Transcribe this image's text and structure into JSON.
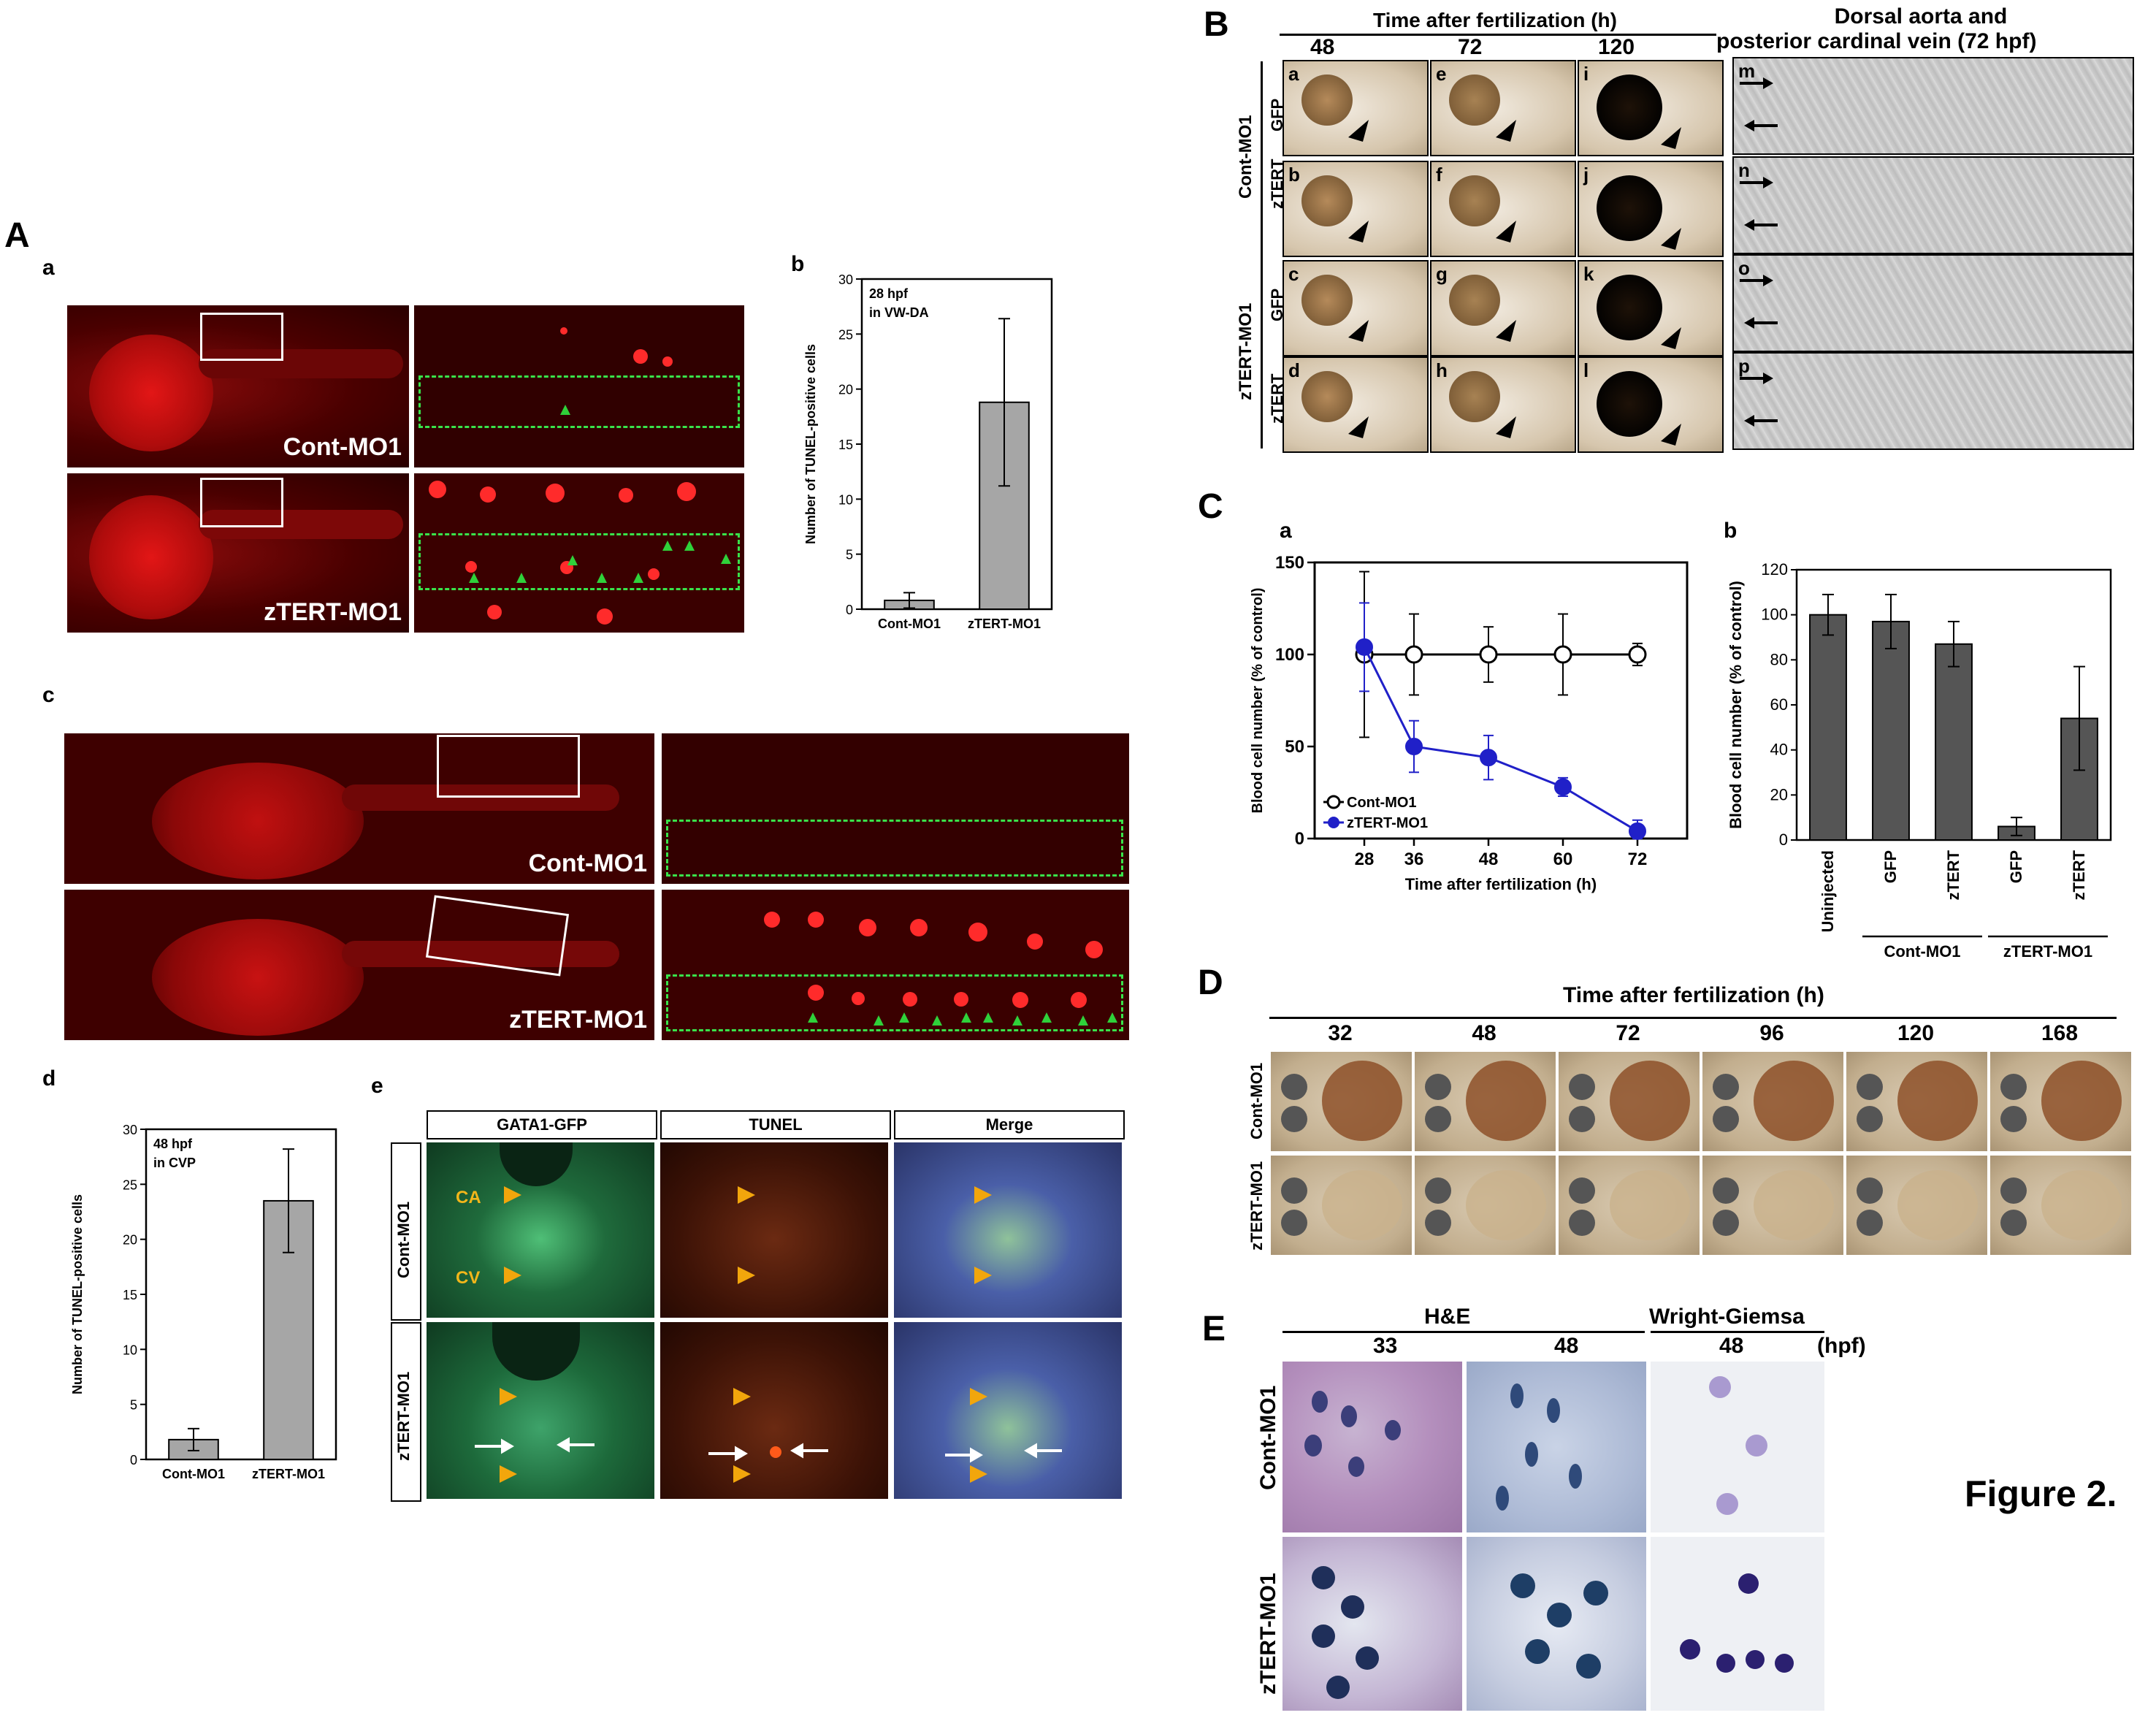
{
  "figure_label": "Figure 2.",
  "panelA": {
    "letter": "A",
    "a": {
      "letter": "a",
      "rows": [
        "Cont-MO1",
        "zTERT-MO1"
      ]
    },
    "c": {
      "letter": "c",
      "rows": [
        "Cont-MO1",
        "zTERT-MO1"
      ]
    },
    "e": {
      "letter": "e",
      "cols": [
        "GATA1-GFP",
        "TUNEL",
        "Merge"
      ],
      "rows": [
        "Cont-MO1",
        "zTERT-MO1"
      ],
      "annot_ca": "CA",
      "annot_cv": "CV"
    }
  },
  "chart_data": [
    {
      "id": "Ab",
      "letter": "b",
      "type": "bar",
      "annotation": [
        "28 hpf",
        "in VW-DA"
      ],
      "categories": [
        "Cont-MO1",
        "zTERT-MO1"
      ],
      "values": [
        0.8,
        18.8
      ],
      "errors": [
        0.7,
        7.6
      ],
      "ylabel": "Number of TUNEL-positive cells",
      "ylim": [
        0,
        30
      ],
      "yticks": [
        "0",
        "5",
        "10",
        "15",
        "20",
        "25",
        "30"
      ],
      "color": "#a6a6a6"
    },
    {
      "id": "Ad",
      "letter": "d",
      "type": "bar",
      "annotation": [
        "48 hpf",
        "in CVP"
      ],
      "categories": [
        "Cont-MO1",
        "zTERT-MO1"
      ],
      "values": [
        1.8,
        23.5
      ],
      "errors": [
        1.0,
        4.7
      ],
      "ylabel": "Number of TUNEL-positive cells",
      "ylim": [
        0,
        30
      ],
      "yticks": [
        "0",
        "5",
        "10",
        "15",
        "20",
        "25",
        "30"
      ],
      "color": "#a6a6a6"
    },
    {
      "id": "Ca",
      "letter": "a",
      "type": "line",
      "x": [
        28,
        36,
        48,
        60,
        72
      ],
      "xticks": [
        "28",
        "36",
        "48",
        "60",
        "72"
      ],
      "xlabel": "Time after fertilization (h)",
      "ylabel": "Blood cell number (% of control)",
      "ylim": [
        0,
        150
      ],
      "yticks": [
        "0",
        "50",
        "100",
        "150"
      ],
      "legend_position": "lower-left",
      "series": [
        {
          "name": "Cont-MO1",
          "values": [
            100,
            100,
            100,
            100,
            100
          ],
          "errors": [
            45,
            22,
            15,
            22,
            6
          ],
          "color": "#000000",
          "marker": "open-circle"
        },
        {
          "name": "zTERT-MO1",
          "values": [
            104,
            50,
            44,
            28,
            4
          ],
          "errors": [
            24,
            14,
            12,
            5,
            6
          ],
          "color": "#2020c8",
          "marker": "filled-circle"
        }
      ]
    },
    {
      "id": "Cb",
      "letter": "b",
      "type": "bar",
      "categories": [
        "Uninjected",
        "GFP",
        "zTERT",
        "GFP",
        "zTERT"
      ],
      "groups": [
        {
          "label": "Cont-MO1",
          "from": 1,
          "to": 2
        },
        {
          "label": "zTERT-MO1",
          "from": 3,
          "to": 4
        }
      ],
      "values": [
        100,
        97,
        87,
        6,
        54
      ],
      "errors": [
        9,
        12,
        10,
        4,
        23
      ],
      "ylabel": "Blood cell number (% of control)",
      "ylim": [
        0,
        120
      ],
      "yticks": [
        "0",
        "20",
        "40",
        "60",
        "80",
        "100",
        "120"
      ],
      "color": "#555555"
    }
  ],
  "panelB": {
    "letter": "B",
    "header": "Time after fertilization (h)",
    "times": [
      "48",
      "72",
      "120"
    ],
    "vessel_title_1": "Dorsal aorta and",
    "vessel_title_2": "posterior cardinal vein  (72 hpf)",
    "mo_groups": [
      "Cont-MO1",
      "zTERT-MO1"
    ],
    "row_labels": [
      "GFP",
      "zTERT",
      "GFP",
      "zTERT"
    ],
    "photo_letters": [
      [
        "a",
        "e",
        "i"
      ],
      [
        "b",
        "f",
        "j"
      ],
      [
        "c",
        "g",
        "k"
      ],
      [
        "d",
        "h",
        "l"
      ]
    ],
    "vessel_letters": [
      "m",
      "n",
      "o",
      "p"
    ]
  },
  "panelC": {
    "letter": "C"
  },
  "panelD": {
    "letter": "D",
    "header": "Time after fertilization (h)",
    "times": [
      "32",
      "48",
      "72",
      "96",
      "120",
      "168"
    ],
    "rows": [
      "Cont-MO1",
      "zTERT-MO1"
    ]
  },
  "panelE": {
    "letter": "E",
    "stain1": "H&E",
    "stain2": "Wright-Giemsa",
    "times": [
      "33",
      "48",
      "48"
    ],
    "unit": "(hpf)",
    "rows": [
      "Cont-MO1",
      "zTERT-MO1"
    ]
  }
}
